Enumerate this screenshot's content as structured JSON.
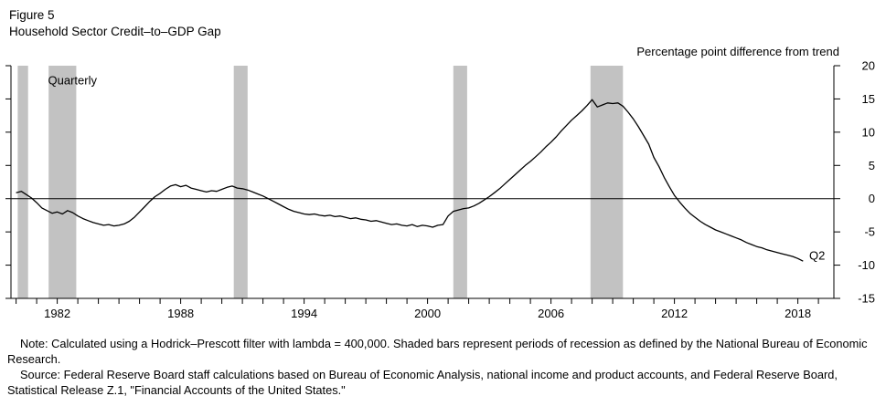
{
  "figure": {
    "label": "Figure 5",
    "title": "Household Sector Credit–to–GDP Gap"
  },
  "unit_label": "Percentage point difference from trend",
  "notes": {
    "note": "Note: Calculated using a Hodrick–Prescott filter with lambda = 400,000. Shaded bars represent periods of recession as defined by the National Bureau of Economic Research.",
    "source": "Source: Federal Reserve Board staff calculations based on Bureau of Economic Analysis, national income and product accounts, and Federal Reserve Board, Statistical Release Z.1, \"Financial Accounts of the United States.\""
  },
  "chart_data": {
    "type": "line",
    "title": "Household Sector Credit–to–GDP Gap",
    "ylabel": "Percentage point difference from trend",
    "xlim": [
      1979.75,
      2019.75
    ],
    "ylim": [
      -15,
      20
    ],
    "y_ticks": [
      -15,
      -10,
      -5,
      0,
      5,
      10,
      15,
      20
    ],
    "x_tick_interval": 1,
    "x_label_ticks": [
      1982,
      1988,
      1994,
      2000,
      2006,
      2012,
      2018
    ],
    "zero_line": true,
    "grid": false,
    "legend": "none",
    "x_start": 1980.0,
    "x_step": 0.25,
    "recession_bands": [
      [
        1980.08,
        1980.58
      ],
      [
        1981.58,
        1982.92
      ],
      [
        1990.58,
        1991.25
      ],
      [
        2001.25,
        2001.92
      ],
      [
        2007.92,
        2009.5
      ]
    ],
    "annotations": [
      {
        "text": "Quarterly",
        "x": 1981.55,
        "y": 17.2,
        "anchor": "start"
      },
      {
        "text": "Q2",
        "x": 2018.55,
        "y": -9.2,
        "anchor": "start"
      }
    ],
    "colors": {
      "line": "#000000",
      "band": "#c2c2c2"
    },
    "series": [
      {
        "name": "Household sector credit-to-GDP gap",
        "values": [
          0.9,
          1.1,
          0.6,
          0.1,
          -0.6,
          -1.4,
          -1.8,
          -2.2,
          -2.0,
          -2.3,
          -1.8,
          -2.1,
          -2.6,
          -3.0,
          -3.3,
          -3.6,
          -3.8,
          -4.0,
          -3.9,
          -4.1,
          -4.0,
          -3.8,
          -3.4,
          -2.8,
          -2.0,
          -1.2,
          -0.4,
          0.3,
          0.8,
          1.4,
          1.9,
          2.1,
          1.8,
          2.0,
          1.6,
          1.4,
          1.2,
          1.0,
          1.2,
          1.1,
          1.4,
          1.7,
          1.9,
          1.6,
          1.5,
          1.3,
          1.0,
          0.7,
          0.4,
          0.0,
          -0.4,
          -0.8,
          -1.2,
          -1.6,
          -1.9,
          -2.1,
          -2.3,
          -2.4,
          -2.3,
          -2.5,
          -2.6,
          -2.5,
          -2.7,
          -2.6,
          -2.8,
          -3.0,
          -2.9,
          -3.1,
          -3.2,
          -3.4,
          -3.3,
          -3.5,
          -3.7,
          -3.9,
          -3.8,
          -4.0,
          -4.1,
          -3.9,
          -4.2,
          -4.0,
          -4.1,
          -4.3,
          -4.0,
          -3.9,
          -2.6,
          -1.9,
          -1.7,
          -1.5,
          -1.4,
          -1.1,
          -0.7,
          -0.2,
          0.3,
          0.9,
          1.5,
          2.2,
          2.9,
          3.6,
          4.3,
          5.0,
          5.6,
          6.3,
          7.0,
          7.8,
          8.5,
          9.3,
          10.2,
          11.0,
          11.8,
          12.5,
          13.2,
          14.0,
          14.9,
          13.8,
          14.1,
          14.4,
          14.3,
          14.4,
          13.9,
          13.0,
          12.0,
          10.8,
          9.5,
          8.2,
          6.2,
          4.8,
          3.2,
          1.8,
          0.5,
          -0.5,
          -1.4,
          -2.2,
          -2.8,
          -3.4,
          -3.9,
          -4.3,
          -4.7,
          -5.0,
          -5.3,
          -5.6,
          -5.9,
          -6.2,
          -6.6,
          -6.9,
          -7.2,
          -7.4,
          -7.7,
          -7.9,
          -8.1,
          -8.3,
          -8.5,
          -8.7,
          -9.0,
          -9.4
        ]
      }
    ]
  }
}
